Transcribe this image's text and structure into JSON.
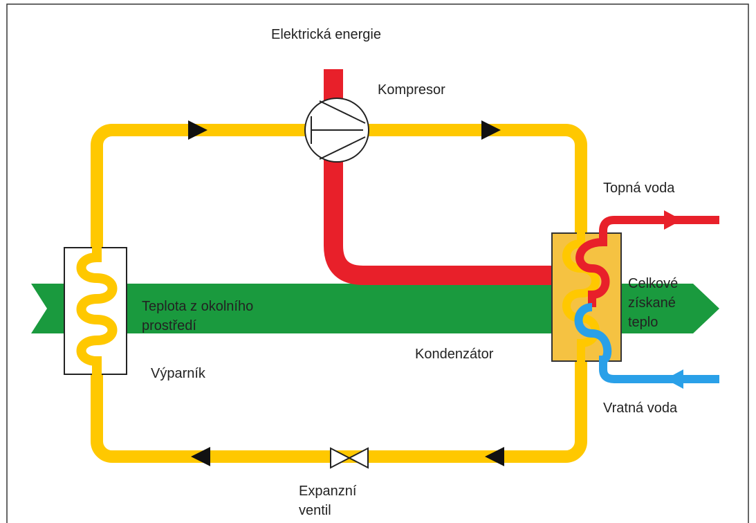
{
  "labels": {
    "electric_energy": "Elektrická energie",
    "compressor": "Kompresor",
    "heating_water": "Topná voda",
    "total_heat": [
      "Celkové",
      "získané",
      "teplo"
    ],
    "ambient_heat": [
      "Teplota z okolního",
      "prostředí"
    ],
    "evaporator": "Výparník",
    "condenser": "Kondenzátor",
    "return_water": "Vratná voda",
    "expansion_valve": [
      "Expanzní",
      "ventil"
    ]
  }
}
